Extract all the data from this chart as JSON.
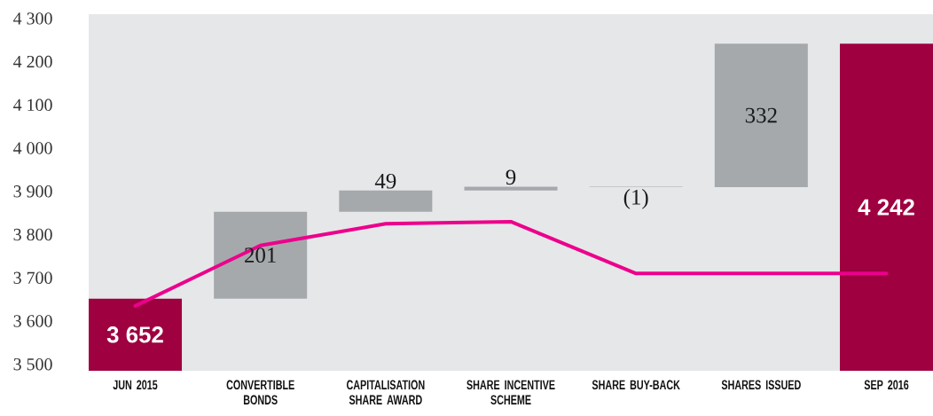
{
  "chart_data": {
    "type": "bar",
    "categories": [
      "JUN 2015",
      "CONVERTIBLE BONDS",
      "CAPITALISATION SHARE AWARD",
      "SHARE INCENTIVE SCHEME",
      "SHARE BUY-BACK",
      "SHARES ISSUED",
      "SEP 2016"
    ],
    "series": [
      {
        "values": [
          3652,
          201,
          49,
          9,
          -1,
          332,
          4242
        ],
        "base": [
          null,
          3652,
          3853,
          3902,
          3911,
          3910,
          null
        ],
        "colors": [
          "#9e0040",
          "#a5a9ac",
          "#a5a9ac",
          "#a5a9ac",
          "#a5a9ac",
          "#a5a9ac",
          "#9e0040"
        ],
        "value_labels": [
          "3 652",
          "201",
          "49",
          "9",
          "(1)",
          "332",
          "4 242"
        ]
      },
      {
        "type": "line",
        "color": "#ec008c",
        "values": [
          3635,
          3775,
          3825,
          3830,
          3710,
          3710,
          3710
        ]
      }
    ],
    "ylim": [
      3485,
      4310
    ],
    "yticks": [
      {
        "value": 3500,
        "label": "3 500"
      },
      {
        "value": 3600,
        "label": "3 600"
      },
      {
        "value": 3700,
        "label": "3 700"
      },
      {
        "value": 3800,
        "label": "3 800"
      },
      {
        "value": 3900,
        "label": "3 900"
      },
      {
        "value": 4000,
        "label": "4 000"
      },
      {
        "value": 4100,
        "label": "4 100"
      },
      {
        "value": 4200,
        "label": "4 200"
      },
      {
        "value": 4300,
        "label": "4 300"
      }
    ]
  }
}
